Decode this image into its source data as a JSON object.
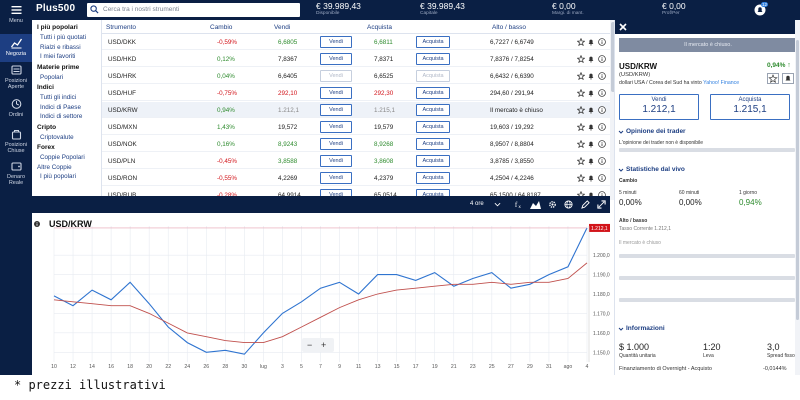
{
  "rail": {
    "menu": "Menu",
    "items": [
      "Negozia",
      "Posizioni Aperte",
      "Ordini",
      "Posizioni Chiuse",
      "Denaro Reale"
    ]
  },
  "header": {
    "logo": "Plus500",
    "search_placeholder": "Cerca tra i nostri strumenti",
    "stats": [
      {
        "value": "€ 39.989,43",
        "label": "Disponibile"
      },
      {
        "value": "€ 39.989,43",
        "label": "Capitale"
      },
      {
        "value": "€ 0,00",
        "label": "Margi. di mant."
      },
      {
        "value": "€ 0,00",
        "label": "Prof/Per"
      }
    ],
    "bell_count": "12"
  },
  "categories": [
    {
      "type": "head",
      "label": "I più popolari"
    },
    {
      "type": "item",
      "label": "Tutti i più quotati"
    },
    {
      "type": "item",
      "label": "Rialzi e ribassi"
    },
    {
      "type": "item",
      "label": "I miei favoriti"
    },
    {
      "type": "head",
      "label": "Materie prime"
    },
    {
      "type": "item",
      "label": "Popolari"
    },
    {
      "type": "head",
      "label": "Indici"
    },
    {
      "type": "item",
      "label": "Tutti gli indici"
    },
    {
      "type": "item",
      "label": "Indici di Paese"
    },
    {
      "type": "item",
      "label": "Indici di settore"
    },
    {
      "type": "head",
      "label": "Cripto"
    },
    {
      "type": "item",
      "label": "Criptovalute"
    },
    {
      "type": "head",
      "label": "Forex"
    },
    {
      "type": "item",
      "label": "Coppie Popolari"
    },
    {
      "type": "item",
      "label": "Altre Coppie"
    },
    {
      "type": "item",
      "label": "I più popolari"
    }
  ],
  "table": {
    "headers": {
      "instrument": "Strumento",
      "change": "Cambio",
      "sell": "Vendi",
      "buy": "Acquista",
      "highlow": "Alto / basso"
    },
    "sell_btn": "Vendi",
    "buy_btn": "Acquista",
    "rows": [
      {
        "sym": "USD/DKK",
        "chg": "-0,59%",
        "sell": "6,6805",
        "buy": "6,6811",
        "hl": "6,7227 / 6,6749",
        "dir": "neg",
        "sellc": "pos",
        "buyc": "pos",
        "disabled": false
      },
      {
        "sym": "USD/HKD",
        "chg": "0,12%",
        "sell": "7,8367",
        "buy": "7,8371",
        "hl": "7,8376 / 7,8254",
        "dir": "pos",
        "sellc": "",
        "buyc": "",
        "disabled": false
      },
      {
        "sym": "USD/HRK",
        "chg": "0,04%",
        "sell": "6,6405",
        "buy": "6,6525",
        "hl": "6,6432 / 6,6390",
        "dir": "pos",
        "sellc": "",
        "buyc": "",
        "disabled": true
      },
      {
        "sym": "USD/HUF",
        "chg": "-0,75%",
        "sell": "292,10",
        "buy": "292,30",
        "hl": "294,60 / 291,94",
        "dir": "neg",
        "sellc": "neg",
        "buyc": "neg",
        "disabled": false
      },
      {
        "sym": "USD/KRW",
        "chg": "0,94%",
        "sell": "1.212,1",
        "buy": "1.215,1",
        "hl": "Il mercato è chiuso",
        "dir": "pos",
        "sellc": "gray",
        "buyc": "gray",
        "disabled": false
      },
      {
        "sym": "USD/MXN",
        "chg": "1,43%",
        "sell": "19,572",
        "buy": "19,579",
        "hl": "19,603 / 19,292",
        "dir": "pos",
        "sellc": "",
        "buyc": "",
        "disabled": false
      },
      {
        "sym": "USD/NOK",
        "chg": "0,16%",
        "sell": "8,9243",
        "buy": "8,9268",
        "hl": "8,9507 / 8,8804",
        "dir": "pos",
        "sellc": "pos",
        "buyc": "pos",
        "disabled": false
      },
      {
        "sym": "USD/PLN",
        "chg": "-0,45%",
        "sell": "3,8588",
        "buy": "3,8608",
        "hl": "3,8785 / 3,8550",
        "dir": "neg",
        "sellc": "pos",
        "buyc": "pos",
        "disabled": false
      },
      {
        "sym": "USD/RON",
        "chg": "-0,55%",
        "sell": "4,2269",
        "buy": "4,2379",
        "hl": "4,2504 / 4,2246",
        "dir": "neg",
        "sellc": "",
        "buyc": "",
        "disabled": false
      },
      {
        "sym": "USD/RUB",
        "chg": "-0,28%",
        "sell": "64,9914",
        "buy": "65,0514",
        "hl": "65,1500 / 64,8187",
        "dir": "neg",
        "sellc": "",
        "buyc": "",
        "disabled": false
      }
    ]
  },
  "chart": {
    "title": "USD/KRW",
    "timeframe": "4 ore",
    "price_tag": "1.212,1",
    "x_ticks": [
      "10",
      "12",
      "14",
      "16",
      "18",
      "20",
      "22",
      "24",
      "26",
      "28",
      "30",
      "lug",
      "3",
      "5",
      "7",
      "9",
      "11",
      "13",
      "15",
      "17",
      "19",
      "21",
      "23",
      "25",
      "27",
      "29",
      "31",
      "ago",
      "4"
    ],
    "y_ticks": [
      "1.200,0",
      "1.190,0",
      "1.180,0",
      "1.170,0",
      "1.160,0",
      "1.150,0"
    ],
    "zoom_out": "−",
    "zoom_in": "+"
  },
  "chart_data": {
    "type": "line",
    "title": "USD/KRW",
    "xlabel": "",
    "ylabel": "",
    "ylim": [
      1145,
      1215
    ],
    "x": [
      "10",
      "12",
      "14",
      "16",
      "18",
      "20",
      "22",
      "24",
      "26",
      "28",
      "30",
      "lug",
      "3",
      "5",
      "7",
      "9",
      "11",
      "13",
      "15",
      "17",
      "19",
      "21",
      "23",
      "25",
      "27",
      "29",
      "31",
      "ago",
      "4"
    ],
    "series": [
      {
        "values": [
          1179,
          1174,
          1182,
          1177,
          1186,
          1175,
          1163,
          1155,
          1150,
          1151,
          1149,
          1160,
          1170,
          1176,
          1183,
          1186,
          1180,
          1190,
          1190,
          1187,
          1191,
          1184,
          1188,
          1191,
          1183,
          1185,
          1190,
          1194,
          1214
        ]
      },
      {
        "values": [
          1177,
          1176,
          1175,
          1174,
          1174,
          1170,
          1165,
          1160,
          1158,
          1156,
          1155,
          1155,
          1158,
          1163,
          1168,
          1173,
          1177,
          1180,
          1182,
          1183,
          1184,
          1185,
          1185,
          1186,
          1185,
          1186,
          1186,
          1188,
          1196
        ]
      }
    ]
  },
  "detail": {
    "closed_msg": "Il mercato è chiuso.",
    "sym": "USD/KRW",
    "chg": "0,94%",
    "sub": "(USD/KRW)",
    "sub2": "dollari USA / Corea del Sud ha vinto",
    "sub2_link": "Yahoo! Finance",
    "sell_label": "Vendi",
    "sell_value": "1.212,1",
    "buy_label": "Acquista",
    "buy_value": "1.215,1",
    "sentiment_title": "Opinione dei trader",
    "sentiment_text": "L'opinione dei trader non è disponibile",
    "live_title": "Statistiche dal vivo",
    "change_label": "Cambio",
    "periods": [
      {
        "label": "5 minuti",
        "value": "0,00%"
      },
      {
        "label": "60 minuti",
        "value": "0,00%"
      },
      {
        "label": "1 giorno",
        "value": "0,94%"
      }
    ],
    "hilo_title": "Alto / basso",
    "hilo_sub": "Tasso Corrente 1.212,1",
    "closed_short": "Il mercato è chiuso",
    "info_title": "Informazioni",
    "info": [
      {
        "value": "$ 1.000",
        "label": "Quantità unitaria"
      },
      {
        "value": "1:20",
        "label": "Leva"
      },
      {
        "value": "3,0",
        "label": "Spread fisso"
      }
    ],
    "overnight_label": "Finanziamento di Overnight - Acquisto",
    "overnight_value": "-0,0144%"
  },
  "footer": "* prezzi illustrativi",
  "colors": {
    "navy": "#0a1f44",
    "green": "#2e8b2e",
    "red": "#d2141a",
    "blue": "#1d3e82"
  }
}
